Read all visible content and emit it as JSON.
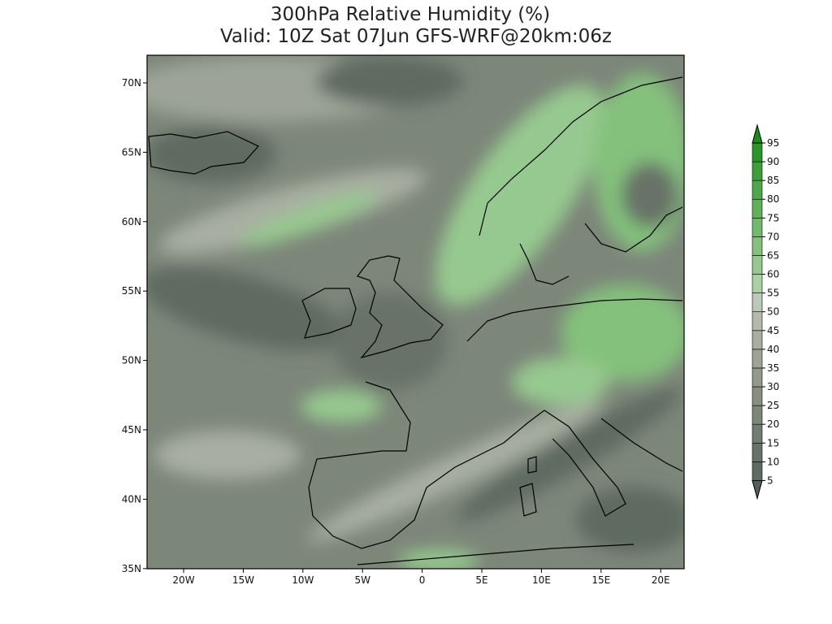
{
  "title": {
    "line1": "300hPa Relative Humidity (%)",
    "line2": "Valid: 10Z Sat 07Jun GFS-WRF@20km:06z"
  },
  "latitude_labels": [
    "70N",
    "65N",
    "60N",
    "55N",
    "50N",
    "45N",
    "40N",
    "35N"
  ],
  "longitude_labels": [
    "20W",
    "15W",
    "10W",
    "5W",
    "0",
    "5E",
    "10E",
    "15E",
    "20E"
  ],
  "colorbar": {
    "levels": [
      5,
      10,
      15,
      20,
      25,
      30,
      35,
      40,
      45,
      50,
      55,
      60,
      65,
      70,
      75,
      80,
      85,
      90,
      95
    ],
    "colors": [
      "#56605a",
      "#5f6a61",
      "#687268",
      "#727c71",
      "#7c8679",
      "#878f83",
      "#92998d",
      "#9da497",
      "#a8afa2",
      "#b3baad",
      "#bcc8b8",
      "#a9d1a3",
      "#96c98f",
      "#84c17d",
      "#72b96b",
      "#60b15a",
      "#4ea849",
      "#3c9f38",
      "#2a9628",
      "#188d18"
    ]
  }
}
